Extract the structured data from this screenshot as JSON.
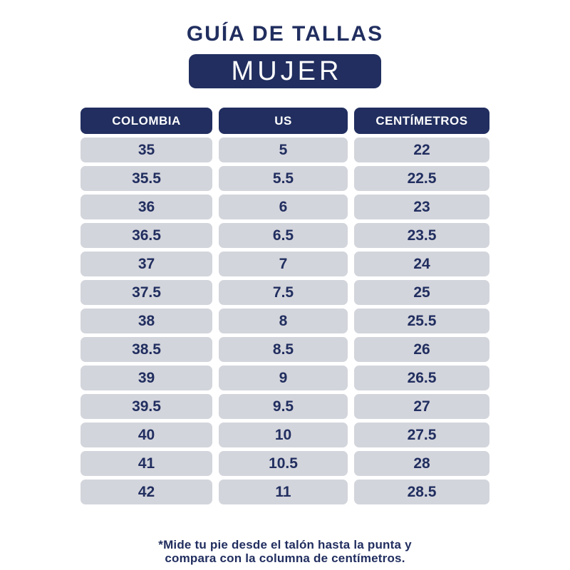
{
  "header": {
    "title": "GUÍA DE TALLAS",
    "category_label": "MUJER"
  },
  "footnote": {
    "line1": "*Mide tu pie desde el talón hasta la punta y",
    "line2": "compara con la columna de centímetros."
  },
  "colors": {
    "navy": "#212e5f",
    "row_bg": "#d3d5dc",
    "header_text": "#ffffff",
    "background": "#ffffff"
  },
  "chart_data": {
    "type": "table",
    "title": "GUÍA DE TALLAS",
    "subtitle": "MUJER",
    "columns": [
      "COLOMBIA",
      "US",
      "CENTÍMETROS"
    ],
    "rows": [
      [
        "35",
        "5",
        "22"
      ],
      [
        "35.5",
        "5.5",
        "22.5"
      ],
      [
        "36",
        "6",
        "23"
      ],
      [
        "36.5",
        "6.5",
        "23.5"
      ],
      [
        "37",
        "7",
        "24"
      ],
      [
        "37.5",
        "7.5",
        "25"
      ],
      [
        "38",
        "8",
        "25.5"
      ],
      [
        "38.5",
        "8.5",
        "26"
      ],
      [
        "39",
        "9",
        "26.5"
      ],
      [
        "39.5",
        "9.5",
        "27"
      ],
      [
        "40",
        "10",
        "27.5"
      ],
      [
        "41",
        "10.5",
        "28"
      ],
      [
        "42",
        "11",
        "28.5"
      ]
    ]
  }
}
